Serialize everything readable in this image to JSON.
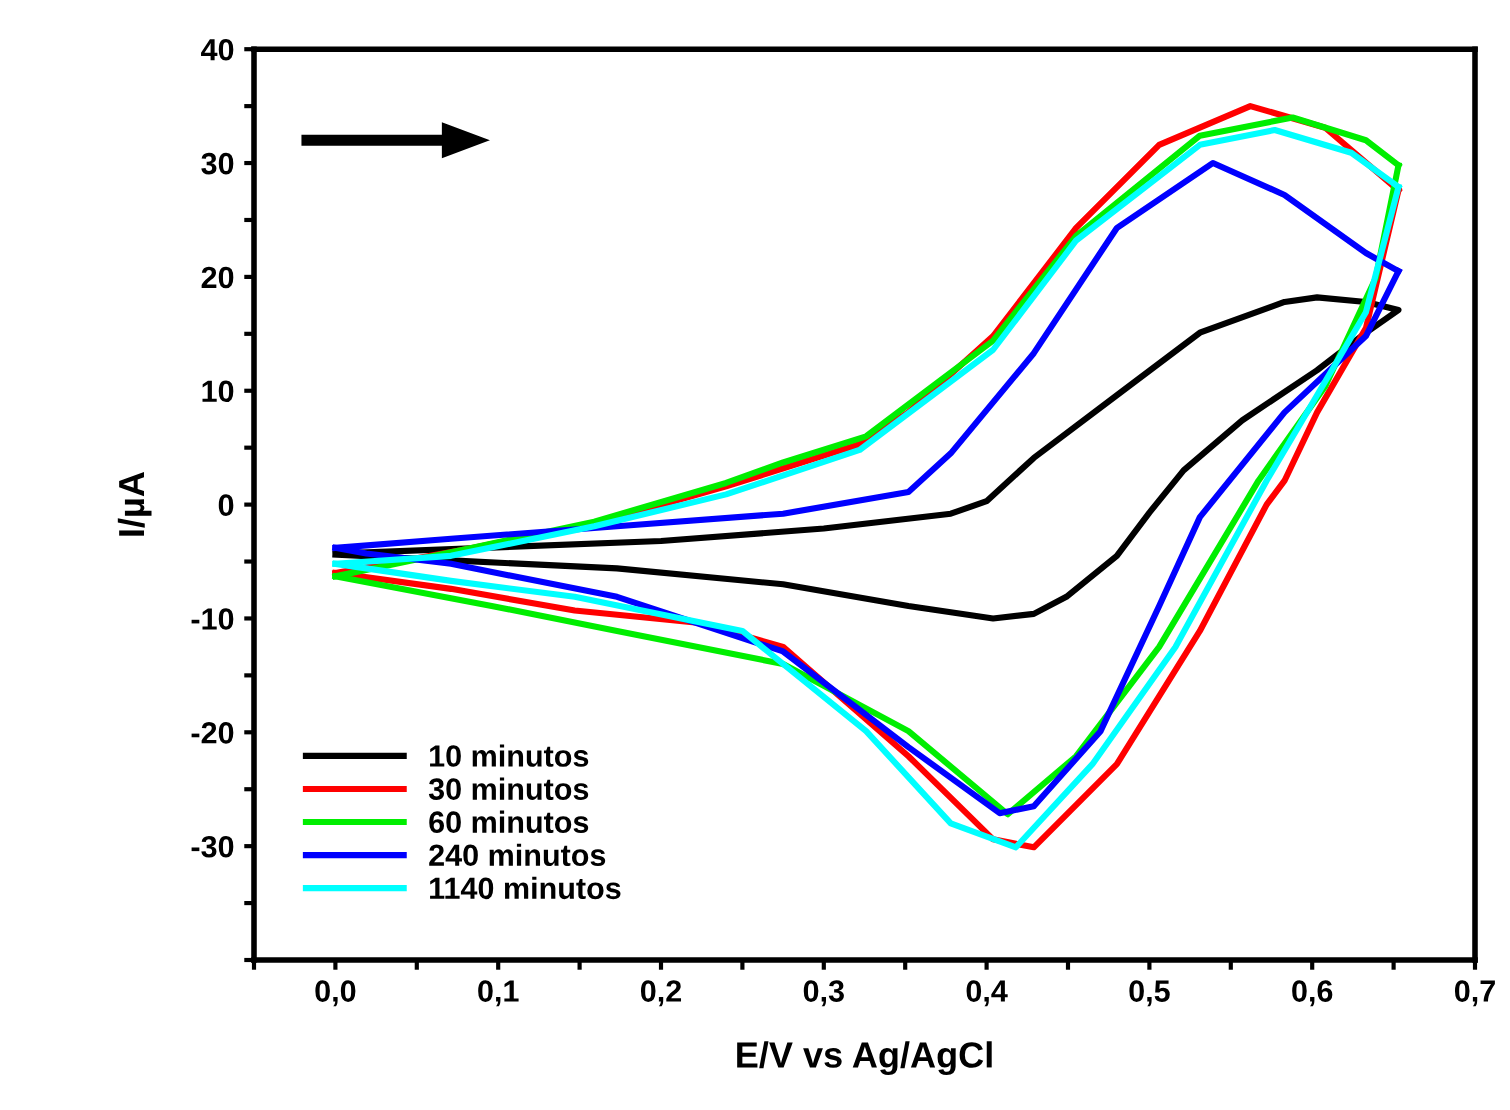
{
  "chart_data": {
    "type": "line",
    "xlabel": "E/V vs Ag/AgCl",
    "ylabel": "I/µA",
    "xlim": [
      -0.05,
      0.7
    ],
    "ylim": [
      -40,
      40
    ],
    "xticks": [
      {
        "value": -0.05,
        "label": null
      },
      {
        "value": 0,
        "label": "0,0"
      },
      {
        "value": 0.05,
        "label": null
      },
      {
        "value": 0.1,
        "label": "0,1"
      },
      {
        "value": 0.15,
        "label": null
      },
      {
        "value": 0.2,
        "label": "0,2"
      },
      {
        "value": 0.25,
        "label": null
      },
      {
        "value": 0.3,
        "label": "0,3"
      },
      {
        "value": 0.35,
        "label": null
      },
      {
        "value": 0.4,
        "label": "0,4"
      },
      {
        "value": 0.45,
        "label": null
      },
      {
        "value": 0.5,
        "label": "0,5"
      },
      {
        "value": 0.55,
        "label": null
      },
      {
        "value": 0.6,
        "label": "0,6"
      },
      {
        "value": 0.65,
        "label": null
      },
      {
        "value": 0.7,
        "label": "0,7"
      }
    ],
    "yticks": [
      {
        "value": -40,
        "label": null
      },
      {
        "value": -35,
        "label": null
      },
      -30,
      {
        "value": -25,
        "label": null
      },
      -20,
      {
        "value": -15,
        "label": null
      },
      -10,
      {
        "value": -5,
        "label": null
      },
      0,
      {
        "value": 5,
        "label": null
      },
      10,
      {
        "value": 15,
        "label": null
      },
      20,
      {
        "value": 25,
        "label": null
      },
      30,
      {
        "value": 35,
        "label": null
      },
      40
    ],
    "grid": false,
    "legend": "bottom left",
    "line_style": "solid",
    "marker": "none",
    "series": [
      {
        "name": "10 minutos",
        "color": "#000000",
        "x": [
          0.0,
          0.2,
          0.3,
          0.378,
          0.4,
          0.429,
          0.48,
          0.531,
          0.583,
          0.603,
          0.633,
          0.653,
          0.633,
          0.603,
          0.557,
          0.521,
          0.5,
          0.48,
          0.449,
          0.429,
          0.404,
          0.352,
          0.275,
          0.173,
          0.071,
          0.0
        ],
        "values": [
          -4.3,
          -3.2,
          -2.1,
          -0.8,
          0.3,
          4.1,
          9.6,
          15.1,
          17.8,
          18.2,
          17.8,
          17.1,
          15.1,
          11.8,
          7.4,
          3.0,
          -0.7,
          -4.5,
          -8.1,
          -9.6,
          -10.0,
          -8.9,
          -7.0,
          -5.6,
          -4.9,
          -4.4
        ]
      },
      {
        "name": "30 minutos",
        "color": "#ff0000",
        "x": [
          0.0,
          0.077,
          0.159,
          0.24,
          0.322,
          0.352,
          0.404,
          0.455,
          0.506,
          0.562,
          0.608,
          0.653
        ],
        "values": [
          -6.0,
          -4.0,
          -1.7,
          1.6,
          5.3,
          8.1,
          14.8,
          24.3,
          31.6,
          35.0,
          33.1,
          27.6
        ]
      },
      {
        "color": "#ff0000",
        "x": [
          0.653,
          0.633,
          0.603,
          0.583,
          0.572,
          0.531,
          0.48,
          0.429,
          0.404,
          0.352,
          0.275,
          0.224,
          0.147,
          0.071,
          0.0
        ],
        "values": [
          27.6,
          15.5,
          8.1,
          2.1,
          0.0,
          -11.1,
          -22.8,
          -30.1,
          -29.4,
          -22.1,
          -12.5,
          -10.4,
          -9.3,
          -7.4,
          -6.0
        ]
      },
      {
        "name": "60 minutos",
        "color": "#00ee00",
        "x": [
          0.0,
          0.077,
          0.159,
          0.24,
          0.275,
          0.326,
          0.404,
          0.455,
          0.531,
          0.588,
          0.633,
          0.653
        ],
        "values": [
          -6.3,
          -4.0,
          -1.5,
          1.9,
          3.7,
          6.0,
          14.4,
          23.6,
          32.4,
          34.0,
          32.0,
          29.8
        ]
      },
      {
        "color": "#00ee00",
        "x": [
          0.653,
          0.639,
          0.608,
          0.567,
          0.506,
          0.455,
          0.413,
          0.352,
          0.275,
          0.173,
          0.096,
          0.0
        ],
        "values": [
          29.8,
          19.9,
          10.4,
          2.1,
          -12.5,
          -22.1,
          -27.2,
          -19.9,
          -14.0,
          -11.1,
          -8.9,
          -6.3
        ]
      },
      {
        "name": "240 minutos",
        "color": "#0000ff",
        "x": [
          0.0,
          0.071,
          0.173,
          0.275,
          0.352,
          0.378,
          0.429,
          0.48,
          0.539,
          0.583,
          0.633,
          0.653
        ],
        "values": [
          -3.8,
          -3.0,
          -1.9,
          -0.8,
          1.1,
          4.5,
          13.3,
          24.3,
          30.0,
          27.2,
          22.1,
          20.5
        ]
      },
      {
        "color": "#0000ff",
        "x": [
          0.653,
          0.633,
          0.583,
          0.531,
          0.506,
          0.47,
          0.429,
          0.408,
          0.352,
          0.275,
          0.173,
          0.071,
          0.019,
          0.0
        ],
        "values": [
          20.5,
          14.8,
          8.1,
          -1.1,
          -8.9,
          -19.9,
          -26.5,
          -27.1,
          -21.3,
          -12.9,
          -8.1,
          -5.2,
          -4.3,
          -3.8
        ]
      },
      {
        "name": "1140 minutos",
        "color": "#00ffff",
        "x": [
          0.0,
          0.071,
          0.159,
          0.24,
          0.322,
          0.404,
          0.455,
          0.531,
          0.577,
          0.624,
          0.653
        ],
        "values": [
          -5.2,
          -4.5,
          -1.9,
          0.9,
          4.8,
          13.6,
          23.2,
          31.6,
          32.9,
          30.9,
          27.9
        ]
      },
      {
        "color": "#00ffff",
        "x": [
          0.653,
          0.633,
          0.603,
          0.572,
          0.516,
          0.465,
          0.418,
          0.378,
          0.326,
          0.25,
          0.147,
          0.071,
          0.0
        ],
        "values": [
          27.9,
          16.9,
          9.6,
          2.1,
          -12.5,
          -22.8,
          -30.1,
          -28.0,
          -19.9,
          -11.1,
          -8.1,
          -6.7,
          -5.2
        ]
      }
    ]
  }
}
